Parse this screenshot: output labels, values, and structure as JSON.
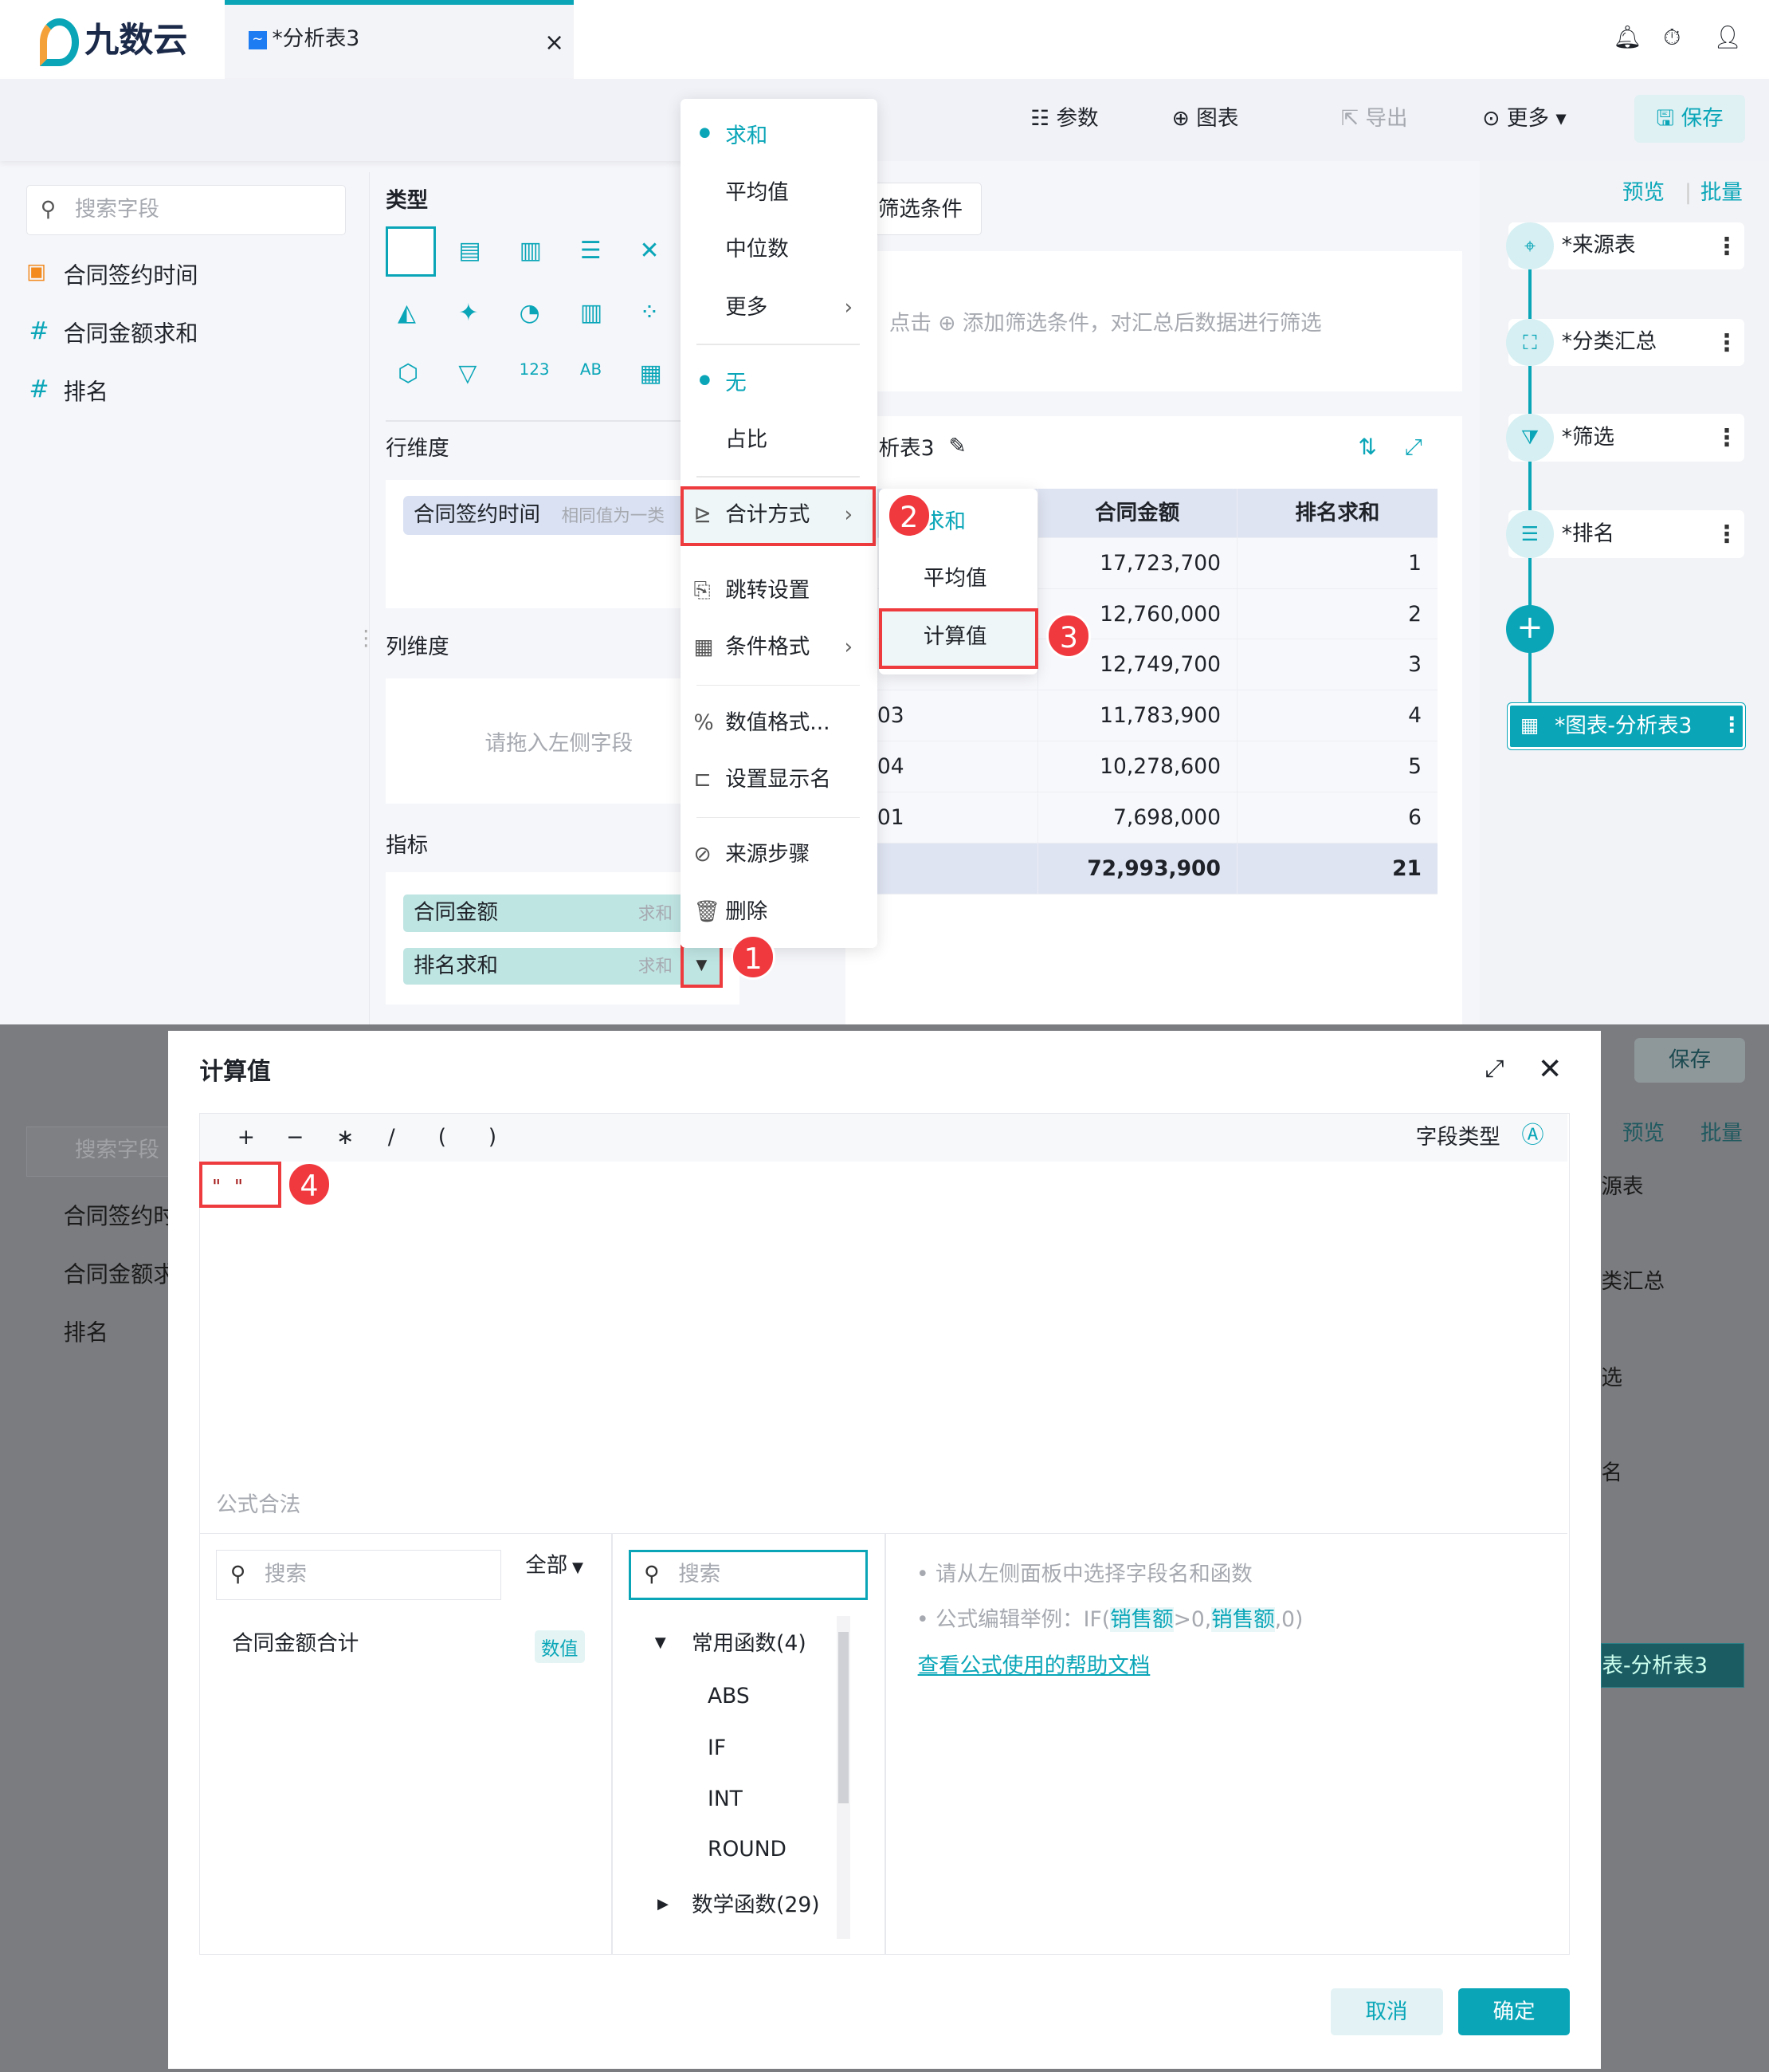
{
  "app": {
    "logo": "九数云",
    "tab_title": "*分析表3",
    "tab_close": "×"
  },
  "toolbar": {
    "params": "参数",
    "chart": "图表",
    "export": "导出",
    "more": "更多",
    "save": "保存"
  },
  "left_panel": {
    "search_placeholder": "搜索字段",
    "fields": [
      {
        "name": "合同签约时间",
        "type": "date"
      },
      {
        "name": "合同金额求和",
        "type": "number"
      },
      {
        "name": "排名",
        "type": "number"
      }
    ]
  },
  "config": {
    "type_label": "类型",
    "row_dim_label": "行维度",
    "row_chip": "合同签约时间",
    "row_chip_hint": "相同值为一类",
    "col_dim_label": "列维度",
    "col_placeholder": "请拖入左侧字段",
    "metric_label": "指标",
    "metrics": [
      {
        "name": "合同金额",
        "agg": "求和"
      },
      {
        "name": "排名求和",
        "agg": "求和"
      }
    ]
  },
  "filter": {
    "button": "筛选条件",
    "hint": "点击 ⊕ 添加筛选条件，对汇总后数据进行筛选"
  },
  "table": {
    "title": "析表3",
    "headers": [
      "",
      "合同金额",
      "排名求和"
    ],
    "rows": [
      [
        "",
        "17,723,700",
        "1"
      ],
      [
        "",
        "12,760,000",
        "2"
      ],
      [
        "",
        "12,749,700",
        "3"
      ],
      [
        "03",
        "11,783,900",
        "4"
      ],
      [
        "04",
        "10,278,600",
        "5"
      ],
      [
        "01",
        "7,698,000",
        "6"
      ]
    ],
    "total": [
      "",
      "72,993,900",
      "21"
    ]
  },
  "steps": {
    "preview": "预览",
    "batch": "批量",
    "nodes": [
      "*来源表",
      "*分类汇总",
      "*筛选",
      "*排名"
    ],
    "final": "*图表-分析表3"
  },
  "context_menu": {
    "agg": [
      "求和",
      "平均值",
      "中位数",
      "更多"
    ],
    "calc": [
      "无",
      "占比"
    ],
    "items": [
      "合计方式",
      "跳转设置",
      "条件格式",
      "数值格式...",
      "设置显示名",
      "来源步骤",
      "删除"
    ]
  },
  "submenu": [
    "求和",
    "平均值",
    "计算值"
  ],
  "badges": [
    "1",
    "2",
    "3",
    "4"
  ],
  "background": {
    "save": "保存",
    "search": "搜索字段",
    "fields": [
      "合同签约时",
      "合同金额求",
      "排名"
    ],
    "preview": "预览",
    "batch": "批量",
    "nodes": [
      "源表",
      "类汇总",
      "选",
      "名"
    ],
    "final": "表-分析表3"
  },
  "dialog": {
    "title": "计算值",
    "operators": [
      "+",
      "−",
      "∗",
      "/",
      "(",
      ")"
    ],
    "field_type": "字段类型",
    "formula": "\" \"",
    "status": "公式合法",
    "field_search": "搜索",
    "filter_all": "全部",
    "field_items": [
      {
        "name": "合同金额合计",
        "tag": "数值"
      }
    ],
    "func_search": "搜索",
    "func_groups": [
      {
        "name": "常用函数(4)",
        "expanded": true,
        "items": [
          "ABS",
          "IF",
          "INT",
          "ROUND"
        ]
      },
      {
        "name": "数学函数(29)",
        "expanded": false
      }
    ],
    "hint1": "请从左侧面板中选择字段名和函数",
    "hint2_prefix": "公式编辑举例：IF(",
    "hint2_field": "销售额",
    "hint2_mid": ">0,",
    "hint2_suffix": ",0)",
    "help_link": "查看公式使用的帮助文档",
    "cancel": "取消",
    "ok": "确定"
  },
  "colors": {
    "accent": "#0aa6b8",
    "highlight": "#ee3b3e"
  }
}
